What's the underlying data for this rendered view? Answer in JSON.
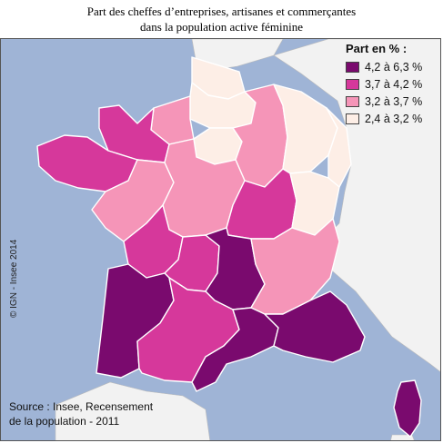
{
  "title": {
    "line1": "Part des cheffes d’entreprises, artisanes et commerçantes",
    "line2": "dans la population active féminine"
  },
  "legend": {
    "title": "Part en % :",
    "classes": [
      {
        "label": "4,2 à 6,3 %",
        "color": "#7a0a6e"
      },
      {
        "label": "3,7 à 4,2 %",
        "color": "#d6389b"
      },
      {
        "label": "3,2 à 3,7 %",
        "color": "#f595b8"
      },
      {
        "label": "2,4 à 3,2 %",
        "color": "#fdeee6"
      }
    ]
  },
  "copyright": "© IGN - Insee 2014",
  "source": {
    "line1": "Source : Insee, Recensement",
    "line2": "de la population - 2011"
  },
  "colors": {
    "sea": "#9fb4d6",
    "neighbor_land": "#f2f2f2",
    "border": "#ffffff"
  }
}
